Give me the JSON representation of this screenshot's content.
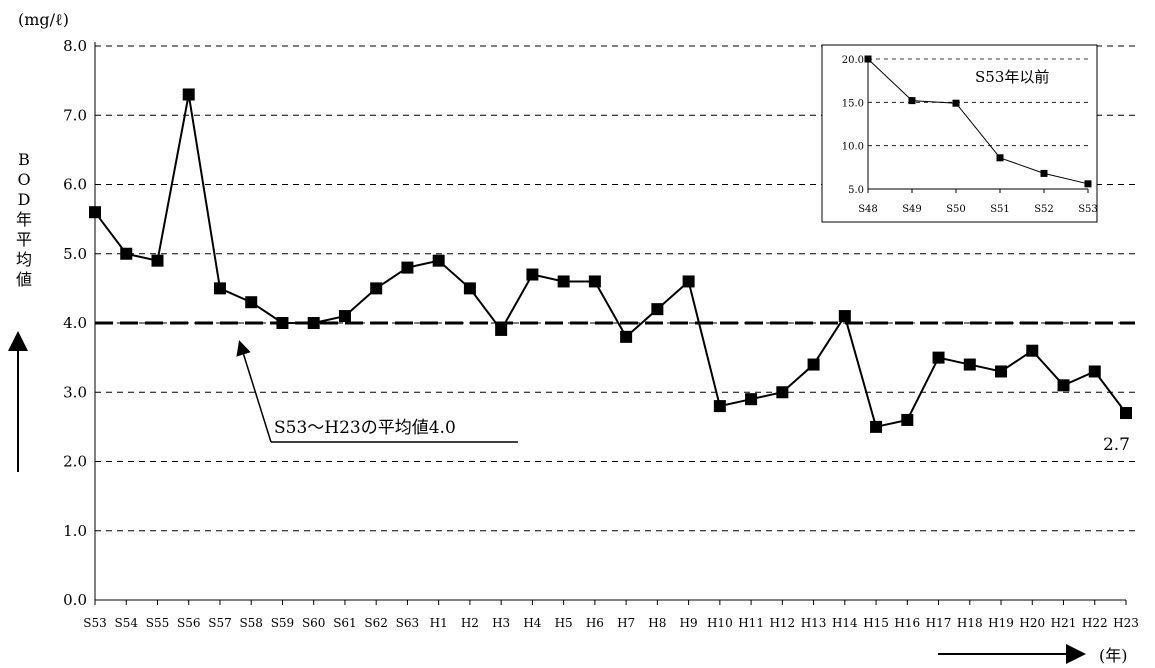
{
  "chart_data": {
    "main": {
      "type": "line",
      "unit_label": "(mg/ℓ)",
      "ylabel_chars": [
        "B",
        "O",
        "D",
        "年",
        "平",
        "均",
        "値"
      ],
      "xunit_label": "(年)",
      "ylim": [
        0,
        8
      ],
      "yticks": [
        "0.0",
        "1.0",
        "2.0",
        "3.0",
        "4.0",
        "5.0",
        "6.0",
        "7.0",
        "8.0"
      ],
      "grid": true,
      "categories": [
        "S53",
        "S54",
        "S55",
        "S56",
        "S57",
        "S58",
        "S59",
        "S60",
        "S61",
        "S62",
        "S63",
        "H1",
        "H2",
        "H3",
        "H4",
        "H5",
        "H6",
        "H7",
        "H8",
        "H9",
        "H10",
        "H11",
        "H12",
        "H13",
        "H14",
        "H15",
        "H16",
        "H17",
        "H18",
        "H19",
        "H20",
        "H21",
        "H22",
        "H23"
      ],
      "values": [
        5.6,
        5.0,
        4.9,
        7.3,
        4.5,
        4.3,
        4.0,
        4.0,
        4.1,
        4.5,
        4.8,
        4.9,
        4.5,
        3.9,
        4.7,
        4.6,
        4.6,
        3.8,
        4.2,
        4.6,
        2.8,
        2.9,
        3.0,
        3.4,
        4.1,
        2.5,
        2.6,
        3.5,
        3.4,
        3.3,
        3.6,
        3.1,
        3.3,
        2.7
      ],
      "average_line": {
        "value": 4.0,
        "label": "S53〜H23の平均値4.0"
      },
      "last_value_label": "2.7"
    },
    "inset": {
      "type": "line",
      "title": "S53年以前",
      "ylim": [
        5,
        20
      ],
      "yticks": [
        "5.0",
        "10.0",
        "15.0",
        "20.0"
      ],
      "grid": true,
      "categories": [
        "S48",
        "S49",
        "S50",
        "S51",
        "S52",
        "S53"
      ],
      "values": [
        20.0,
        15.2,
        14.9,
        8.6,
        6.8,
        5.6
      ]
    }
  }
}
